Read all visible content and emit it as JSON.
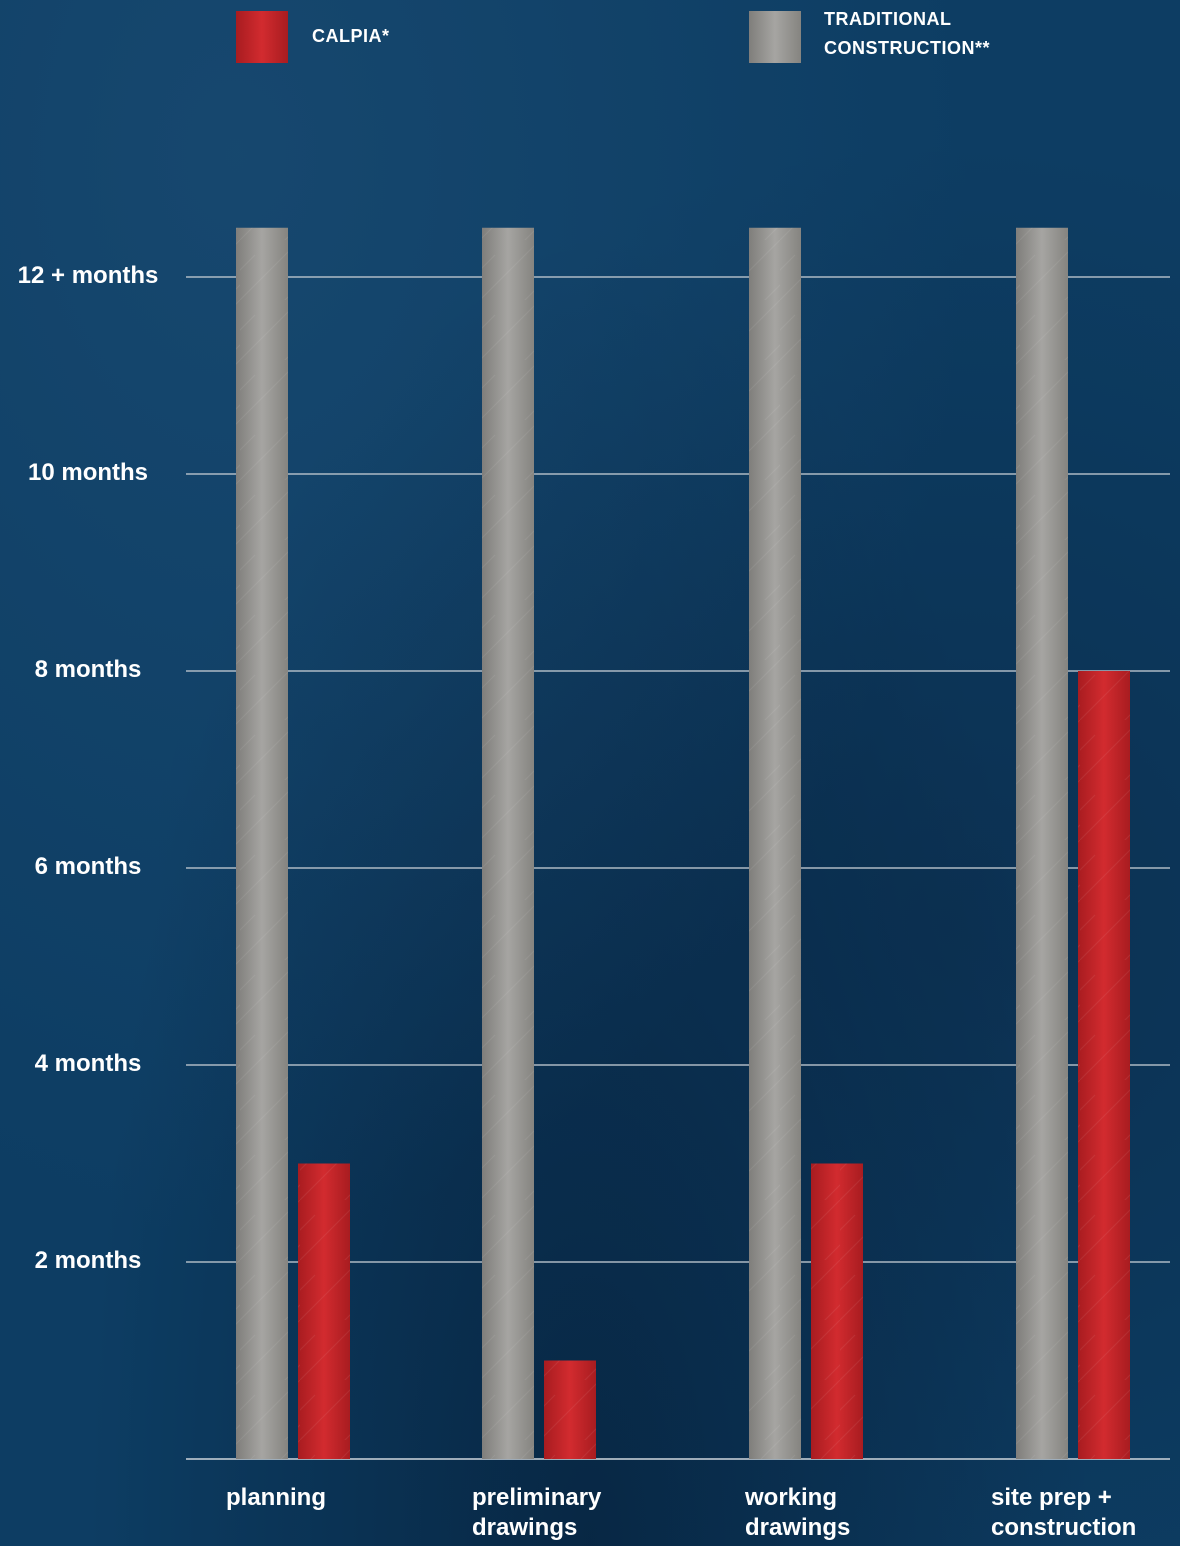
{
  "legend": {
    "calpia_label": "CALPIA*",
    "traditional_label": "TRADITIONAL\nCONSTRUCTION**"
  },
  "colors": {
    "background": "#0d3d63",
    "calpia": "#c8262a",
    "traditional": "#9a9996",
    "gridline": "#b9c3cc"
  },
  "chart_data": {
    "type": "bar",
    "categories": [
      "planning",
      "preliminary\ndrawings",
      "working\ndrawings",
      "site prep +\nconstruction"
    ],
    "series": [
      {
        "name": "TRADITIONAL CONSTRUCTION**",
        "values": [
          12.5,
          12.5,
          12.5,
          12.5
        ]
      },
      {
        "name": "CALPIA*",
        "values": [
          3,
          1,
          3,
          8
        ]
      }
    ],
    "yticks": [
      {
        "value": 2,
        "label": "2 months"
      },
      {
        "value": 4,
        "label": "4 months"
      },
      {
        "value": 6,
        "label": "6 months"
      },
      {
        "value": 8,
        "label": "8 months"
      },
      {
        "value": 10,
        "label": "10 months"
      },
      {
        "value": 12,
        "label": "12 + months"
      }
    ],
    "ylim": [
      0,
      12.5
    ],
    "grid": true,
    "legend_position": "top"
  }
}
